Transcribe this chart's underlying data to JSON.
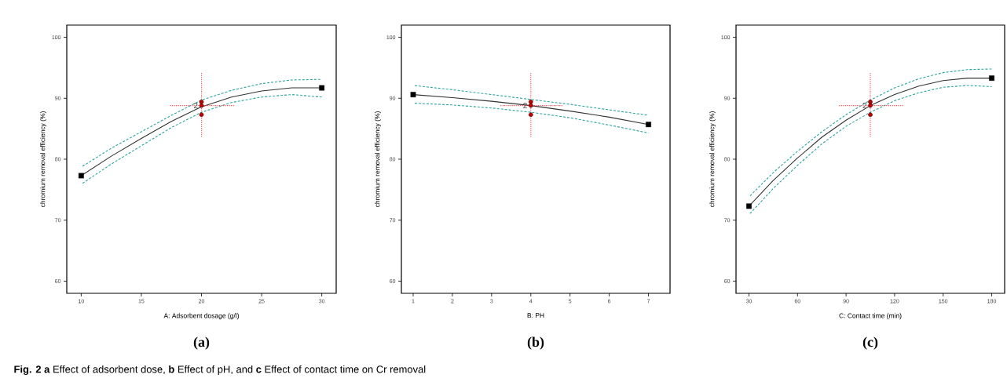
{
  "chart_data": [
    {
      "type": "line",
      "title": "(a)",
      "xlabel": "A: Adsorbent dosage (g/l)",
      "ylabel": "chromium removal efficiency  (%)",
      "xlim": [
        8.8,
        31.2
      ],
      "ylim": [
        58,
        102
      ],
      "xticks": [
        10,
        15,
        20,
        25,
        30
      ],
      "yticks": [
        60,
        70,
        80,
        90,
        100
      ],
      "annotations": [
        "**Fig. 2  a** Effect of adsorbent dose, **b** Effect of pH, and **c** Effect of contact time on Cr removal",
        {
          "text": "2",
          "x": 20,
          "y": 88.8
        }
      ],
      "series": [
        {
          "type": "line",
          "color": "#2aa6a0",
          "line_style": "dashed",
          "x": [
            10,
            12.5,
            15,
            17.5,
            20,
            22.5,
            25,
            27.5,
            30
          ],
          "values": [
            78.7,
            81.8,
            84.5,
            87.2,
            89.7,
            91.3,
            92.4,
            93.0,
            93.1
          ]
        },
        {
          "type": "line",
          "color": "#2aa6a0",
          "line_style": "dashed",
          "x": [
            10,
            12.5,
            15,
            17.5,
            20,
            22.5,
            25,
            27.5,
            30
          ],
          "values": [
            75.9,
            79.2,
            82.2,
            85.2,
            87.7,
            89.3,
            90.2,
            90.6,
            90.2
          ]
        },
        {
          "type": "line",
          "color": "#333333",
          "line_style": "solid",
          "x": [
            10,
            12.5,
            15,
            17.5,
            20,
            22.5,
            25,
            27.5,
            30
          ],
          "values": [
            77.3,
            80.5,
            83.4,
            86.2,
            88.6,
            90.2,
            91.2,
            91.7,
            91.7
          ]
        },
        {
          "type": "scatter",
          "color": "#000000",
          "marker": "square",
          "x": [
            10,
            30
          ],
          "values": [
            77.3,
            91.7
          ]
        },
        {
          "type": "line",
          "color": "#ff3030",
          "line_style": "dotted",
          "x": [
            20,
            20
          ],
          "values": [
            83.5,
            94.3
          ]
        },
        {
          "type": "line",
          "color": "#ff3030",
          "line_style": "dotted",
          "x": [
            17.3,
            22.7
          ],
          "values": [
            88.8,
            88.8
          ]
        },
        {
          "type": "scatter",
          "color": "#c00000",
          "marker": "circle",
          "x": [
            20,
            20,
            20
          ],
          "values": [
            89.4,
            88.8,
            87.3
          ]
        }
      ]
    },
    {
      "type": "line",
      "title": "(b)",
      "xlabel": "B: PH",
      "ylabel": "chromium removal efficiency  (%)",
      "xlim": [
        0.7,
        7.55
      ],
      "ylim": [
        58,
        102
      ],
      "xticks": [
        1,
        2,
        3,
        4,
        5,
        6,
        7
      ],
      "yticks": [
        60,
        70,
        80,
        90,
        100
      ],
      "annotations": [
        {
          "text": "2",
          "x": 4,
          "y": 88.8
        }
      ],
      "series": [
        {
          "type": "line",
          "color": "#2aa6a0",
          "line_style": "dashed",
          "x": [
            1,
            2,
            3,
            4,
            5,
            6,
            7
          ],
          "values": [
            92.1,
            91.4,
            90.6,
            89.8,
            89.0,
            88.1,
            87.2
          ]
        },
        {
          "type": "line",
          "color": "#2aa6a0",
          "line_style": "dashed",
          "x": [
            1,
            2,
            3,
            4,
            5,
            6,
            7
          ],
          "values": [
            89.2,
            88.9,
            88.4,
            87.7,
            86.8,
            85.6,
            84.3
          ]
        },
        {
          "type": "line",
          "color": "#333333",
          "line_style": "solid",
          "x": [
            1,
            2,
            3,
            4,
            5,
            6,
            7
          ],
          "values": [
            90.6,
            90.1,
            89.5,
            88.8,
            87.9,
            86.9,
            85.7
          ]
        },
        {
          "type": "scatter",
          "color": "#000000",
          "marker": "square",
          "x": [
            1,
            7
          ],
          "values": [
            90.6,
            85.7
          ]
        },
        {
          "type": "line",
          "color": "#ff3030",
          "line_style": "dotted",
          "x": [
            4,
            4
          ],
          "values": [
            83.5,
            94.3
          ]
        },
        {
          "type": "line",
          "color": "#ff3030",
          "line_style": "dotted",
          "x": [
            3.2,
            4.8
          ],
          "values": [
            88.8,
            88.8
          ]
        },
        {
          "type": "scatter",
          "color": "#c00000",
          "marker": "circle",
          "x": [
            4,
            4,
            4
          ],
          "values": [
            89.4,
            88.8,
            87.3
          ]
        }
      ]
    },
    {
      "type": "line",
      "title": "(c)",
      "xlabel": "C: Contact time  (min)",
      "ylabel": "chromium removal efficiency  (%)",
      "xlim": [
        22,
        188
      ],
      "ylim": [
        58,
        102
      ],
      "xticks": [
        30,
        60,
        90,
        120,
        150,
        180
      ],
      "yticks": [
        60,
        70,
        80,
        90,
        100
      ],
      "annotations": [
        {
          "text": "2",
          "x": 105,
          "y": 88.8
        }
      ],
      "series": [
        {
          "type": "line",
          "color": "#2aa6a0",
          "line_style": "dashed",
          "x": [
            30,
            45,
            60,
            75,
            90,
            105,
            120,
            135,
            150,
            165,
            180
          ],
          "values": [
            73.8,
            77.8,
            81.3,
            84.5,
            87.3,
            89.7,
            91.7,
            93.2,
            94.2,
            94.7,
            94.8
          ]
        },
        {
          "type": "line",
          "color": "#2aa6a0",
          "line_style": "dashed",
          "x": [
            30,
            45,
            60,
            75,
            90,
            105,
            120,
            135,
            150,
            165,
            180
          ],
          "values": [
            70.9,
            75.2,
            79.0,
            82.5,
            85.4,
            87.7,
            89.6,
            90.9,
            91.8,
            92.1,
            91.9
          ]
        },
        {
          "type": "line",
          "color": "#333333",
          "line_style": "solid",
          "x": [
            30,
            45,
            60,
            75,
            90,
            105,
            120,
            135,
            150,
            165,
            180
          ],
          "values": [
            72.3,
            76.5,
            80.2,
            83.6,
            86.4,
            88.8,
            90.6,
            92.0,
            92.9,
            93.3,
            93.3
          ]
        },
        {
          "type": "scatter",
          "color": "#000000",
          "marker": "square",
          "x": [
            30,
            180
          ],
          "values": [
            72.3,
            93.3
          ]
        },
        {
          "type": "line",
          "color": "#ff3030",
          "line_style": "dotted",
          "x": [
            105,
            105
          ],
          "values": [
            83.5,
            94.3
          ]
        },
        {
          "type": "line",
          "color": "#ff3030",
          "line_style": "dotted",
          "x": [
            85,
            125
          ],
          "values": [
            88.8,
            88.8
          ]
        },
        {
          "type": "scatter",
          "color": "#c00000",
          "marker": "circle",
          "x": [
            105,
            105,
            105
          ],
          "values": [
            89.4,
            88.8,
            87.3
          ]
        }
      ]
    }
  ]
}
